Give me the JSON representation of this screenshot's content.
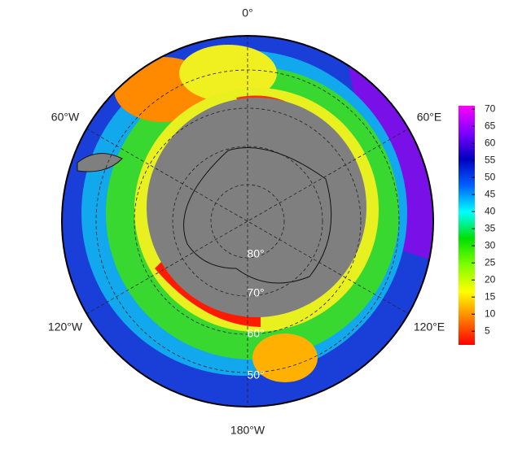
{
  "map": {
    "longitude_labels": [
      "0°",
      "60°E",
      "120°E",
      "180°W",
      "120°W",
      "60°W"
    ],
    "latitude_labels": [
      "80°",
      "70°",
      "60°",
      "50°"
    ],
    "colorbar": {
      "colormap": [
        "#ff0000",
        "#ff8000",
        "#ffff00",
        "#80ff00",
        "#00e000",
        "#00ffff",
        "#0060ff",
        "#0000c0",
        "#8000ff",
        "#ff00ff"
      ],
      "lim": [
        1,
        71
      ],
      "ticks": [
        5,
        10,
        15,
        20,
        25,
        30,
        35,
        40,
        45,
        50,
        55,
        60,
        65,
        70
      ]
    }
  }
}
